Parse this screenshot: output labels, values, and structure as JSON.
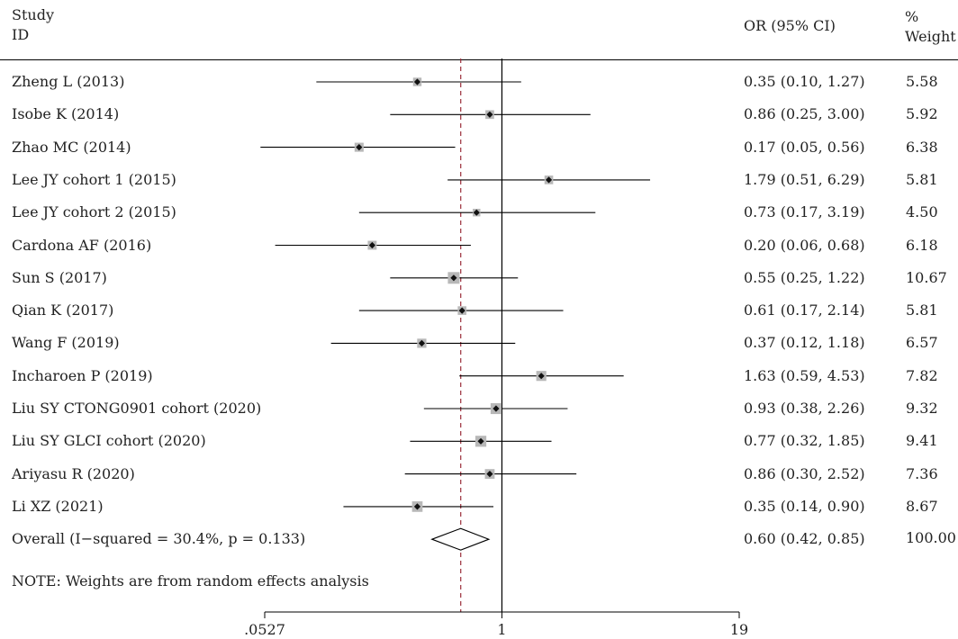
{
  "header": {
    "study_line1": "Study",
    "study_line2": "ID",
    "or_label": "OR (95% CI)",
    "weight_line1": "%",
    "weight_line2": "Weight"
  },
  "note": "NOTE: Weights are from random effects analysis",
  "chart_data": {
    "type": "forest",
    "x_scale": "log",
    "xlim": [
      0.0527,
      19
    ],
    "x_ticks": [
      {
        "value": 0.0527,
        "label": ".0527"
      },
      {
        "value": 1,
        "label": "1"
      },
      {
        "value": 19,
        "label": "19"
      }
    ],
    "null_line": 1,
    "overall_line": 0.6,
    "studies": [
      {
        "label": "Zheng L (2013)",
        "or": 0.35,
        "lo": 0.1,
        "hi": 1.27,
        "ci_text": "0.35 (0.10, 1.27)",
        "weight": "5.58"
      },
      {
        "label": "Isobe K (2014)",
        "or": 0.86,
        "lo": 0.25,
        "hi": 3.0,
        "ci_text": "0.86 (0.25, 3.00)",
        "weight": "5.92"
      },
      {
        "label": "Zhao MC (2014)",
        "or": 0.17,
        "lo": 0.05,
        "hi": 0.56,
        "ci_text": "0.17 (0.05, 0.56)",
        "weight": "6.38"
      },
      {
        "label": "Lee JY cohort 1 (2015)",
        "or": 1.79,
        "lo": 0.51,
        "hi": 6.29,
        "ci_text": "1.79 (0.51, 6.29)",
        "weight": "5.81"
      },
      {
        "label": "Lee JY cohort 2 (2015)",
        "or": 0.73,
        "lo": 0.17,
        "hi": 3.19,
        "ci_text": "0.73 (0.17, 3.19)",
        "weight": "4.50"
      },
      {
        "label": "Cardona AF (2016)",
        "or": 0.2,
        "lo": 0.06,
        "hi": 0.68,
        "ci_text": "0.20 (0.06, 0.68)",
        "weight": "6.18"
      },
      {
        "label": "Sun S (2017)",
        "or": 0.55,
        "lo": 0.25,
        "hi": 1.22,
        "ci_text": "0.55 (0.25, 1.22)",
        "weight": "10.67"
      },
      {
        "label": "Qian K (2017)",
        "or": 0.61,
        "lo": 0.17,
        "hi": 2.14,
        "ci_text": "0.61 (0.17, 2.14)",
        "weight": "5.81"
      },
      {
        "label": "Wang F (2019)",
        "or": 0.37,
        "lo": 0.12,
        "hi": 1.18,
        "ci_text": "0.37 (0.12, 1.18)",
        "weight": "6.57"
      },
      {
        "label": "Incharoen P (2019)",
        "or": 1.63,
        "lo": 0.59,
        "hi": 4.53,
        "ci_text": "1.63 (0.59, 4.53)",
        "weight": "7.82"
      },
      {
        "label": "Liu SY CTONG0901 cohort (2020)",
        "or": 0.93,
        "lo": 0.38,
        "hi": 2.26,
        "ci_text": "0.93 (0.38, 2.26)",
        "weight": "9.32"
      },
      {
        "label": "Liu SY GLCI cohort (2020)",
        "or": 0.77,
        "lo": 0.32,
        "hi": 1.85,
        "ci_text": "0.77 (0.32, 1.85)",
        "weight": "9.41"
      },
      {
        "label": "Ariyasu R (2020)",
        "or": 0.86,
        "lo": 0.3,
        "hi": 2.52,
        "ci_text": "0.86 (0.30, 2.52)",
        "weight": "7.36"
      },
      {
        "label": "Li XZ (2021)",
        "or": 0.35,
        "lo": 0.14,
        "hi": 0.9,
        "ci_text": "0.35 (0.14, 0.90)",
        "weight": "8.67"
      }
    ],
    "overall": {
      "label": "Overall (I−squared = 30.4%, p = 0.133)",
      "or": 0.6,
      "lo": 0.42,
      "hi": 0.85,
      "ci_text": "0.60 (0.42, 0.85)",
      "weight": "100.00"
    },
    "colors": {
      "line": "#000000",
      "box": "#b8b8b8",
      "dashed": "#9b2d3a"
    }
  }
}
